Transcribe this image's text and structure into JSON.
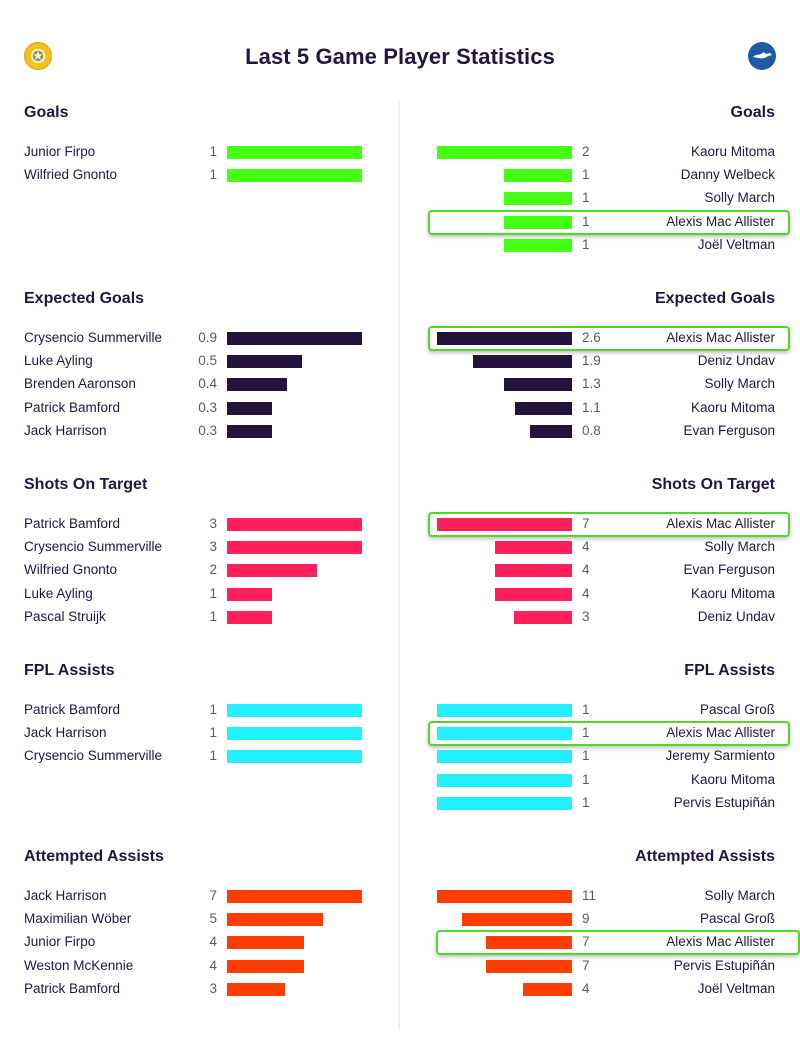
{
  "header": {
    "title": "Last 5 Game Player Statistics",
    "left_team_badge": "leeds-badge-icon",
    "right_team_badge": "brighton-badge-icon"
  },
  "colors": {
    "goals": "#45ff12",
    "expected_goals": "#24133d",
    "shots_on_target": "#ff1f5a",
    "fpl_assists": "#22f0ff",
    "attempted_assists": "#ff3d00",
    "highlight": "#52d62a",
    "text": "#23153f",
    "value_text": "#5b5b66"
  },
  "left": {
    "sections": [
      {
        "title": "Goals",
        "max": 1,
        "rows": [
          {
            "name": "Junior Firpo",
            "value": "1"
          },
          {
            "name": "Wilfried Gnonto",
            "value": "1"
          }
        ]
      },
      {
        "title": "Expected Goals",
        "max": 0.9,
        "rows": [
          {
            "name": "Crysencio Summerville",
            "value": "0.9"
          },
          {
            "name": "Luke Ayling",
            "value": "0.5"
          },
          {
            "name": "Brenden Aaronson",
            "value": "0.4"
          },
          {
            "name": "Patrick Bamford",
            "value": "0.3"
          },
          {
            "name": "Jack Harrison",
            "value": "0.3"
          }
        ]
      },
      {
        "title": "Shots On Target",
        "max": 3,
        "rows": [
          {
            "name": "Patrick Bamford",
            "value": "3"
          },
          {
            "name": "Crysencio Summerville",
            "value": "3"
          },
          {
            "name": "Wilfried Gnonto",
            "value": "2"
          },
          {
            "name": "Luke Ayling",
            "value": "1"
          },
          {
            "name": "Pascal Struijk",
            "value": "1"
          }
        ]
      },
      {
        "title": "FPL Assists",
        "max": 1,
        "rows": [
          {
            "name": "Patrick Bamford",
            "value": "1"
          },
          {
            "name": "Jack Harrison",
            "value": "1"
          },
          {
            "name": "Crysencio Summerville",
            "value": "1"
          }
        ]
      },
      {
        "title": "Attempted Assists",
        "max": 7,
        "rows": [
          {
            "name": "Jack Harrison",
            "value": "7"
          },
          {
            "name": "Maximilian Wöber",
            "value": "5"
          },
          {
            "name": "Junior Firpo",
            "value": "4"
          },
          {
            "name": "Weston McKennie",
            "value": "4"
          },
          {
            "name": "Patrick Bamford",
            "value": "3"
          }
        ]
      }
    ]
  },
  "right": {
    "sections": [
      {
        "title": "Goals",
        "max": 2,
        "rows": [
          {
            "name": "Kaoru Mitoma",
            "value": "2"
          },
          {
            "name": "Danny Welbeck",
            "value": "1"
          },
          {
            "name": "Solly March",
            "value": "1"
          },
          {
            "name": "Alexis Mac Allister",
            "value": "1",
            "highlighted": true
          },
          {
            "name": "Joël Veltman",
            "value": "1"
          }
        ]
      },
      {
        "title": "Expected Goals",
        "max": 2.6,
        "rows": [
          {
            "name": "Alexis Mac Allister",
            "value": "2.6",
            "highlighted": true
          },
          {
            "name": "Deniz Undav",
            "value": "1.9"
          },
          {
            "name": "Solly March",
            "value": "1.3"
          },
          {
            "name": "Kaoru Mitoma",
            "value": "1.1"
          },
          {
            "name": "Evan Ferguson",
            "value": "0.8"
          }
        ]
      },
      {
        "title": "Shots On Target",
        "max": 7,
        "rows": [
          {
            "name": "Alexis Mac Allister",
            "value": "7",
            "highlighted": true
          },
          {
            "name": "Solly March",
            "value": "4"
          },
          {
            "name": "Evan Ferguson",
            "value": "4"
          },
          {
            "name": "Kaoru Mitoma",
            "value": "4"
          },
          {
            "name": "Deniz Undav",
            "value": "3"
          }
        ]
      },
      {
        "title": "FPL Assists",
        "max": 1,
        "rows": [
          {
            "name": "Pascal Groß",
            "value": "1"
          },
          {
            "name": "Alexis Mac Allister",
            "value": "1",
            "highlighted": true
          },
          {
            "name": "Jeremy Sarmiento",
            "value": "1"
          },
          {
            "name": "Kaoru Mitoma",
            "value": "1"
          },
          {
            "name": "Pervis Estupiñán",
            "value": "1"
          }
        ]
      },
      {
        "title": "Attempted Assists",
        "max": 11,
        "rows": [
          {
            "name": "Solly March",
            "value": "11"
          },
          {
            "name": "Pascal Groß",
            "value": "9"
          },
          {
            "name": "Alexis Mac Allister",
            "value": "7",
            "highlighted": true
          },
          {
            "name": "Pervis Estupiñán",
            "value": "7"
          },
          {
            "name": "Joël Veltman",
            "value": "4"
          }
        ]
      }
    ]
  },
  "chart_data": [
    {
      "type": "bar",
      "title": "Goals",
      "team": "left",
      "categories": [
        "Junior Firpo",
        "Wilfried Gnonto"
      ],
      "values": [
        1,
        1
      ]
    },
    {
      "type": "bar",
      "title": "Goals",
      "team": "right",
      "categories": [
        "Kaoru Mitoma",
        "Danny Welbeck",
        "Solly March",
        "Alexis Mac Allister",
        "Joël Veltman"
      ],
      "values": [
        2,
        1,
        1,
        1,
        1
      ]
    },
    {
      "type": "bar",
      "title": "Expected Goals",
      "team": "left",
      "categories": [
        "Crysencio Summerville",
        "Luke Ayling",
        "Brenden Aaronson",
        "Patrick Bamford",
        "Jack Harrison"
      ],
      "values": [
        0.9,
        0.5,
        0.4,
        0.3,
        0.3
      ]
    },
    {
      "type": "bar",
      "title": "Expected Goals",
      "team": "right",
      "categories": [
        "Alexis Mac Allister",
        "Deniz Undav",
        "Solly March",
        "Kaoru Mitoma",
        "Evan Ferguson"
      ],
      "values": [
        2.6,
        1.9,
        1.3,
        1.1,
        0.8
      ]
    },
    {
      "type": "bar",
      "title": "Shots On Target",
      "team": "left",
      "categories": [
        "Patrick Bamford",
        "Crysencio Summerville",
        "Wilfried Gnonto",
        "Luke Ayling",
        "Pascal Struijk"
      ],
      "values": [
        3,
        3,
        2,
        1,
        1
      ]
    },
    {
      "type": "bar",
      "title": "Shots On Target",
      "team": "right",
      "categories": [
        "Alexis Mac Allister",
        "Solly March",
        "Evan Ferguson",
        "Kaoru Mitoma",
        "Deniz Undav"
      ],
      "values": [
        7,
        4,
        4,
        4,
        3
      ]
    },
    {
      "type": "bar",
      "title": "FPL Assists",
      "team": "left",
      "categories": [
        "Patrick Bamford",
        "Jack Harrison",
        "Crysencio Summerville"
      ],
      "values": [
        1,
        1,
        1
      ]
    },
    {
      "type": "bar",
      "title": "FPL Assists",
      "team": "right",
      "categories": [
        "Pascal Groß",
        "Alexis Mac Allister",
        "Jeremy Sarmiento",
        "Kaoru Mitoma",
        "Pervis Estupiñán"
      ],
      "values": [
        1,
        1,
        1,
        1,
        1
      ]
    },
    {
      "type": "bar",
      "title": "Attempted Assists",
      "team": "left",
      "categories": [
        "Jack Harrison",
        "Maximilian Wöber",
        "Junior Firpo",
        "Weston McKennie",
        "Patrick Bamford"
      ],
      "values": [
        7,
        5,
        4,
        4,
        3
      ]
    },
    {
      "type": "bar",
      "title": "Attempted Assists",
      "team": "right",
      "categories": [
        "Solly March",
        "Pascal Groß",
        "Alexis Mac Allister",
        "Pervis Estupiñán",
        "Joël Veltman"
      ],
      "values": [
        11,
        9,
        7,
        7,
        4
      ]
    }
  ]
}
